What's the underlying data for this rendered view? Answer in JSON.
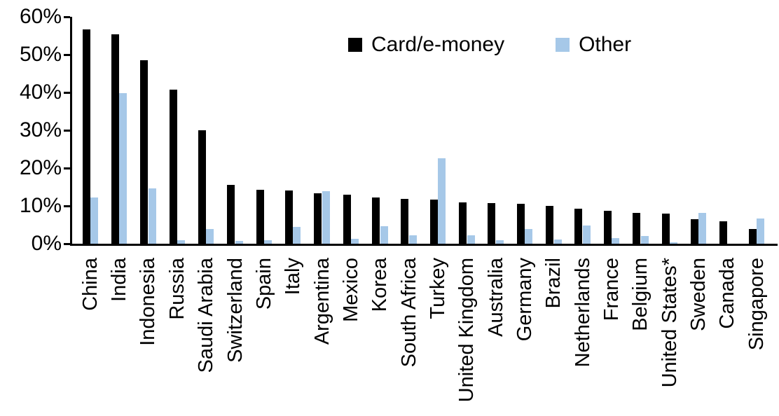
{
  "chart_data": {
    "type": "bar",
    "title": "",
    "xlabel": "",
    "ylabel": "",
    "grid": false,
    "legend_position": "top-center",
    "y_axis": {
      "min": 0,
      "max": 60,
      "tick_step": 10,
      "tick_labels": [
        "0%",
        "10%",
        "20%",
        "30%",
        "40%",
        "50%",
        "60%"
      ]
    },
    "categories": [
      "China",
      "India",
      "Indonesia",
      "Russia",
      "Saudi Arabia",
      "Switzerland",
      "Spain",
      "Italy",
      "Argentina",
      "Mexico",
      "Korea",
      "South Africa",
      "Turkey",
      "United Kingdom",
      "Australia",
      "Germany",
      "Brazil",
      "Netherlands",
      "France",
      "Belgium",
      "United States*",
      "Sweden",
      "Canada",
      "Singapore"
    ],
    "series": [
      {
        "name": "Card/e-money",
        "color": "#000000",
        "values": [
          56.6,
          55.4,
          48.5,
          40.8,
          30.0,
          15.6,
          14.2,
          14.1,
          13.4,
          13.0,
          12.3,
          11.8,
          11.6,
          11.0,
          10.8,
          10.6,
          10.0,
          9.3,
          8.7,
          8.2,
          7.9,
          6.4,
          5.9,
          3.9
        ]
      },
      {
        "name": "Other",
        "color": "#a6c8e8",
        "values": [
          12.3,
          39.9,
          14.6,
          0.9,
          3.8,
          0.7,
          1.0,
          4.5,
          13.9,
          1.3,
          4.6,
          2.3,
          22.6,
          2.3,
          0.9,
          3.9,
          1.2,
          4.8,
          1.5,
          2.0,
          0.3,
          8.1,
          0.0,
          6.6
        ]
      }
    ]
  }
}
